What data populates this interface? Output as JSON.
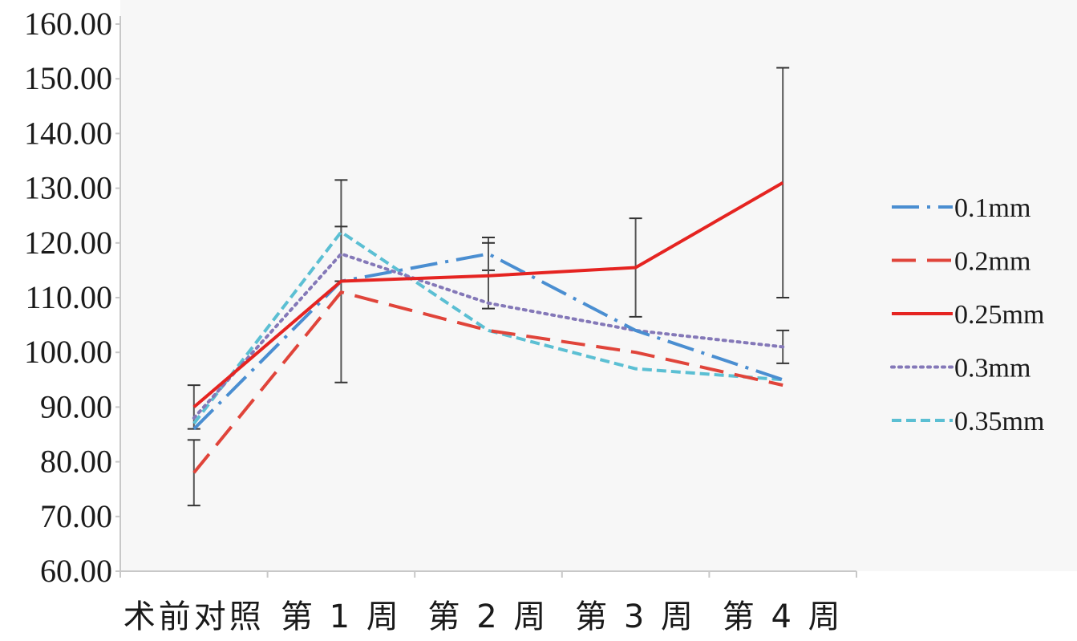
{
  "chart_data": {
    "type": "line",
    "title": "",
    "xlabel": "",
    "ylabel": "",
    "ylim": [
      60,
      160
    ],
    "grid": false,
    "legend_position": "right",
    "y_ticks": [
      "60.00",
      "70.00",
      "80.00",
      "90.00",
      "100.00",
      "110.00",
      "120.00",
      "130.00",
      "140.00",
      "150.00",
      "160.00"
    ],
    "categories": [
      "术前对照",
      "第 1 周",
      "第 2 周",
      "第 3 周",
      "第 4 周"
    ],
    "series": [
      {
        "name": "0.1mm",
        "color": "#4a8ed1",
        "dash": "longdash-dot",
        "values": [
          86,
          113,
          118,
          104,
          95
        ],
        "err": [
          null,
          null,
          3,
          null,
          null
        ]
      },
      {
        "name": "0.2mm",
        "color": "#e0443a",
        "dash": "dash",
        "values": [
          78,
          111,
          104,
          100,
          94
        ],
        "err": [
          6,
          null,
          null,
          null,
          null
        ]
      },
      {
        "name": "0.25mm",
        "color": "#e52421",
        "dash": "solid",
        "values": [
          90,
          113,
          114,
          115.5,
          131
        ],
        "err": [
          4,
          18.5,
          6,
          9,
          21
        ]
      },
      {
        "name": "0.3mm",
        "color": "#8478b8",
        "dash": "dot",
        "values": [
          88,
          118,
          109,
          104,
          101
        ],
        "err": [
          null,
          5,
          null,
          null,
          3
        ]
      },
      {
        "name": "0.35mm",
        "color": "#5bbfd3",
        "dash": "shortdash",
        "values": [
          87,
          122,
          104,
          97,
          95
        ],
        "err": [
          null,
          null,
          null,
          null,
          null
        ]
      }
    ]
  }
}
